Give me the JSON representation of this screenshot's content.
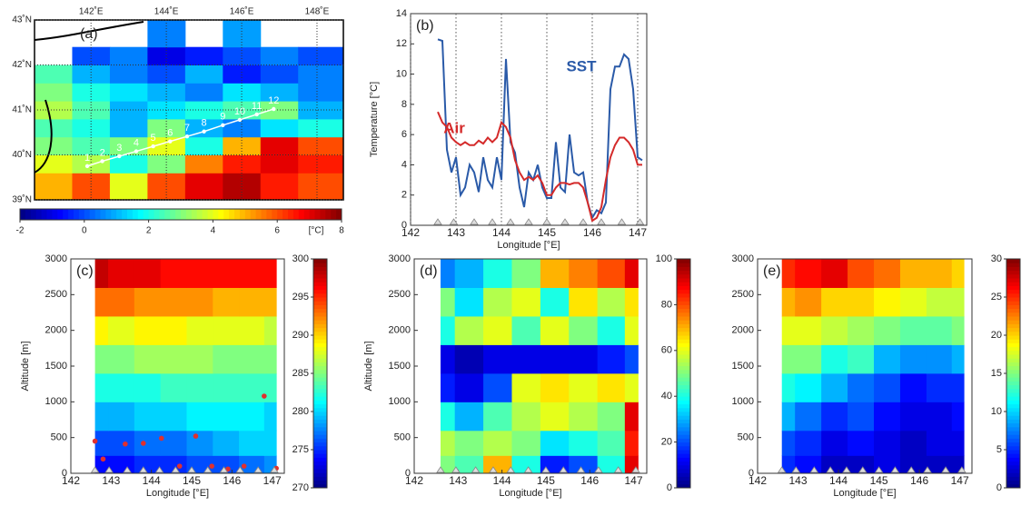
{
  "chart_data": [
    {
      "type": "map",
      "panel_label": "(a)",
      "xlim": [
        140.5,
        148.7
      ],
      "ylim": [
        39,
        43
      ],
      "xticks": [
        {
          "value": 142,
          "label": "142˚E"
        },
        {
          "value": 144,
          "label": "144˚E"
        },
        {
          "value": 146,
          "label": "146˚E"
        },
        {
          "value": 148,
          "label": "148˚E"
        }
      ],
      "yticks": [
        {
          "value": 39,
          "label": "39˚N"
        },
        {
          "value": 40,
          "label": "40˚N"
        },
        {
          "value": 41,
          "label": "41˚N"
        },
        {
          "value": 42,
          "label": "42˚N"
        },
        {
          "value": 43,
          "label": "43˚N"
        }
      ],
      "field": {
        "x": [
          141.0,
          142.0,
          143.0,
          144.0,
          145.0,
          146.0,
          147.0,
          148.0
        ],
        "y": [
          39.4,
          39.8,
          40.2,
          40.6,
          41.0,
          41.4,
          41.8,
          42.2,
          42.6
        ],
        "z": [
          [
            5,
            6,
            4,
            6,
            7,
            7.5,
            6.5,
            6
          ],
          [
            4,
            3.5,
            2,
            3,
            5.5,
            6.5,
            7,
            6.5
          ],
          [
            3,
            2.5,
            3,
            4,
            2,
            5,
            7,
            6
          ],
          [
            2.5,
            2,
            1,
            3,
            1,
            0.5,
            1.5,
            2
          ],
          [
            3.5,
            2.5,
            1,
            1.5,
            2,
            2.5,
            3,
            1
          ],
          [
            3,
            2,
            1.5,
            1,
            0.5,
            1.5,
            1,
            0.5
          ],
          [
            2.5,
            1,
            0.5,
            0,
            1,
            -0.5,
            0,
            0.5
          ],
          [
            null,
            0,
            0.5,
            -1,
            -0.5,
            0,
            0.5,
            0
          ],
          [
            null,
            null,
            null,
            0.5,
            null,
            0.8,
            null,
            null
          ]
        ]
      },
      "stations": {
        "labels": [
          "1",
          "2",
          "3",
          "4",
          "5",
          "6",
          "7",
          "8",
          "9",
          "10",
          "11",
          "12"
        ],
        "lon": [
          141.9,
          142.3,
          142.75,
          143.2,
          143.65,
          144.1,
          144.55,
          145.0,
          145.5,
          145.95,
          146.4,
          146.85
        ],
        "lat": [
          39.75,
          39.86,
          39.97,
          40.08,
          40.19,
          40.3,
          40.41,
          40.52,
          40.66,
          40.78,
          40.9,
          41.02
        ]
      },
      "clim": [
        -2,
        8
      ],
      "cticks": [
        -2,
        0,
        2,
        4,
        6,
        8
      ],
      "colorbar_label": "[°C]"
    },
    {
      "type": "line",
      "panel_label": "(b)",
      "xlabel": "Longitude [°E]",
      "ylabel": "Temperature [°C]",
      "xlim": [
        142,
        147.2
      ],
      "ylim": [
        0,
        14
      ],
      "xticks": [
        142,
        143,
        144,
        145,
        146,
        147
      ],
      "yticks": [
        0,
        2,
        4,
        6,
        8,
        10,
        12,
        14
      ],
      "x": [
        142.6,
        142.7,
        142.8,
        142.9,
        143.0,
        143.1,
        143.2,
        143.3,
        143.4,
        143.5,
        143.6,
        143.7,
        143.8,
        143.9,
        144.0,
        144.1,
        144.2,
        144.3,
        144.4,
        144.5,
        144.6,
        144.7,
        144.8,
        144.9,
        145.0,
        145.1,
        145.2,
        145.3,
        145.4,
        145.5,
        145.6,
        145.7,
        145.8,
        145.9,
        146.0,
        146.1,
        146.2,
        146.3,
        146.4,
        146.5,
        146.6,
        146.7,
        146.8,
        146.9,
        147.0,
        147.1
      ],
      "series": [
        {
          "name": "SST",
          "color": "#2a5aa8",
          "values": [
            12.3,
            12.2,
            5,
            3.5,
            4.5,
            2,
            2.5,
            4,
            3.5,
            2.2,
            4.5,
            3,
            2.5,
            4.5,
            3,
            11,
            5.5,
            4.8,
            2.5,
            1.2,
            3.5,
            3,
            4,
            2.5,
            1.8,
            1.8,
            5.5,
            2.5,
            2.2,
            6,
            3.5,
            3.3,
            3.5,
            1.5,
            0.5,
            1,
            0.8,
            1.5,
            9,
            10.5,
            10.5,
            11.3,
            11,
            9,
            4.5,
            4.3
          ]
        },
        {
          "name": "Air",
          "color": "#d42a2a",
          "values": [
            7.5,
            6.8,
            6.5,
            5.8,
            5.5,
            5.3,
            5.5,
            5.3,
            5.3,
            5.6,
            5.4,
            5.8,
            5.5,
            5.8,
            6.8,
            6.5,
            5.8,
            4.3,
            3.5,
            3,
            3.2,
            3,
            3.3,
            2.8,
            2,
            2,
            2.5,
            2.8,
            2.8,
            2.7,
            2.8,
            2.8,
            2.5,
            1.5,
            0.3,
            0.5,
            1.2,
            3,
            4.5,
            5.3,
            5.8,
            5.8,
            5.5,
            5,
            4,
            4
          ]
        }
      ],
      "stations": [
        142.6,
        142.95,
        143.4,
        143.8,
        144.2,
        144.6,
        145.0,
        145.4,
        145.8,
        146.2,
        146.65,
        147.05
      ]
    },
    {
      "type": "contour",
      "panel_label": "(c)",
      "xlabel": "Longitude [°E]",
      "ylabel": "Altitude [m]",
      "xlim": [
        142,
        147.3
      ],
      "ylim": [
        0,
        3000
      ],
      "xticks": [
        142,
        143,
        144,
        145,
        146,
        147
      ],
      "yticks": [
        0,
        500,
        1000,
        1500,
        2000,
        2500,
        3000
      ],
      "field": {
        "x": [
          142.6,
          143.25,
          143.9,
          144.55,
          145.2,
          145.85,
          146.5,
          147.1
        ],
        "y": [
          100,
          400,
          800,
          1200,
          1600,
          2000,
          2400,
          2800
        ],
        "z": [
          [
            274,
            274,
            275,
            275,
            276,
            276,
            277,
            278
          ],
          [
            276,
            276,
            277,
            277,
            278,
            279,
            280,
            280
          ],
          [
            279,
            279,
            280,
            280,
            281,
            281,
            281,
            280
          ],
          [
            282,
            282,
            282,
            283,
            283,
            283,
            283,
            283
          ],
          [
            285,
            285,
            286,
            286,
            286,
            285,
            285,
            285
          ],
          [
            289,
            288,
            289,
            289,
            288,
            288,
            288,
            287
          ],
          [
            293,
            293,
            292,
            292,
            292,
            291,
            291,
            291
          ],
          [
            298,
            297,
            297,
            296,
            296,
            296,
            296,
            296
          ]
        ]
      },
      "points": {
        "color": "#e03030",
        "x": [
          142.6,
          142.8,
          143.35,
          143.8,
          144.25,
          144.7,
          145.1,
          145.5,
          145.9,
          146.3,
          146.8,
          147.1
        ],
        "y": [
          450,
          200,
          410,
          420,
          490,
          100,
          520,
          100,
          60,
          100,
          1080,
          70
        ]
      },
      "clim": [
        270,
        300
      ],
      "cticks": [
        270,
        275,
        280,
        285,
        290,
        295,
        300
      ]
    },
    {
      "type": "contour",
      "panel_label": "(d)",
      "xlabel": "Longitude [°E]",
      "ylabel": "Altitude [m]",
      "xlim": [
        142,
        147.3
      ],
      "ylim": [
        0,
        3000
      ],
      "xticks": [
        142,
        143,
        144,
        145,
        146,
        147
      ],
      "yticks": [
        0,
        500,
        1000,
        1500,
        2000,
        2500,
        3000
      ],
      "field": {
        "x": [
          142.6,
          143.25,
          143.9,
          144.55,
          145.2,
          145.85,
          146.5,
          147.1
        ],
        "y": [
          100,
          400,
          800,
          1200,
          1600,
          2000,
          2400,
          2800
        ],
        "z": [
          [
            50,
            45,
            70,
            40,
            15,
            20,
            40,
            90
          ],
          [
            55,
            50,
            55,
            50,
            35,
            40,
            45,
            85
          ],
          [
            40,
            30,
            45,
            55,
            60,
            55,
            50,
            90
          ],
          [
            15,
            10,
            20,
            60,
            65,
            60,
            65,
            60
          ],
          [
            10,
            5,
            10,
            10,
            10,
            10,
            15,
            20
          ],
          [
            40,
            55,
            60,
            45,
            60,
            50,
            40,
            60
          ],
          [
            50,
            35,
            55,
            60,
            40,
            65,
            55,
            65
          ],
          [
            25,
            30,
            40,
            50,
            70,
            75,
            80,
            90
          ]
        ]
      },
      "clim": [
        0,
        100
      ],
      "cticks": [
        0,
        20,
        40,
        60,
        80,
        100
      ]
    },
    {
      "type": "contour",
      "panel_label": "(e)",
      "xlabel": "Longitude [°E]",
      "xlim": [
        142,
        147.3
      ],
      "ylim": [
        0,
        3000
      ],
      "xticks": [
        142,
        143,
        144,
        145,
        146,
        147
      ],
      "yticks": [
        0,
        500,
        1000,
        1500,
        2000,
        2500,
        3000
      ],
      "field": {
        "x": [
          142.6,
          143.25,
          143.9,
          144.55,
          145.2,
          145.85,
          146.5,
          147.1
        ],
        "y": [
          100,
          400,
          800,
          1200,
          1600,
          2000,
          2400,
          2800
        ],
        "z": [
          [
            5,
            4,
            2,
            2,
            3,
            2,
            2,
            2
          ],
          [
            6,
            5,
            3,
            4,
            3,
            2,
            3,
            3
          ],
          [
            9,
            7,
            5,
            6,
            4,
            3,
            3,
            4
          ],
          [
            12,
            11,
            9,
            7,
            6,
            4,
            5,
            5
          ],
          [
            15,
            15,
            12,
            13,
            9,
            8,
            8,
            9
          ],
          [
            18,
            18,
            17,
            16,
            15,
            14,
            14,
            15
          ],
          [
            21,
            22,
            20,
            20,
            19,
            18,
            17,
            17
          ],
          [
            25,
            26,
            27,
            24,
            23,
            21,
            21,
            20
          ]
        ]
      },
      "clim": [
        0,
        30
      ],
      "cticks": [
        0,
        5,
        10,
        15,
        20,
        25,
        30
      ]
    }
  ]
}
